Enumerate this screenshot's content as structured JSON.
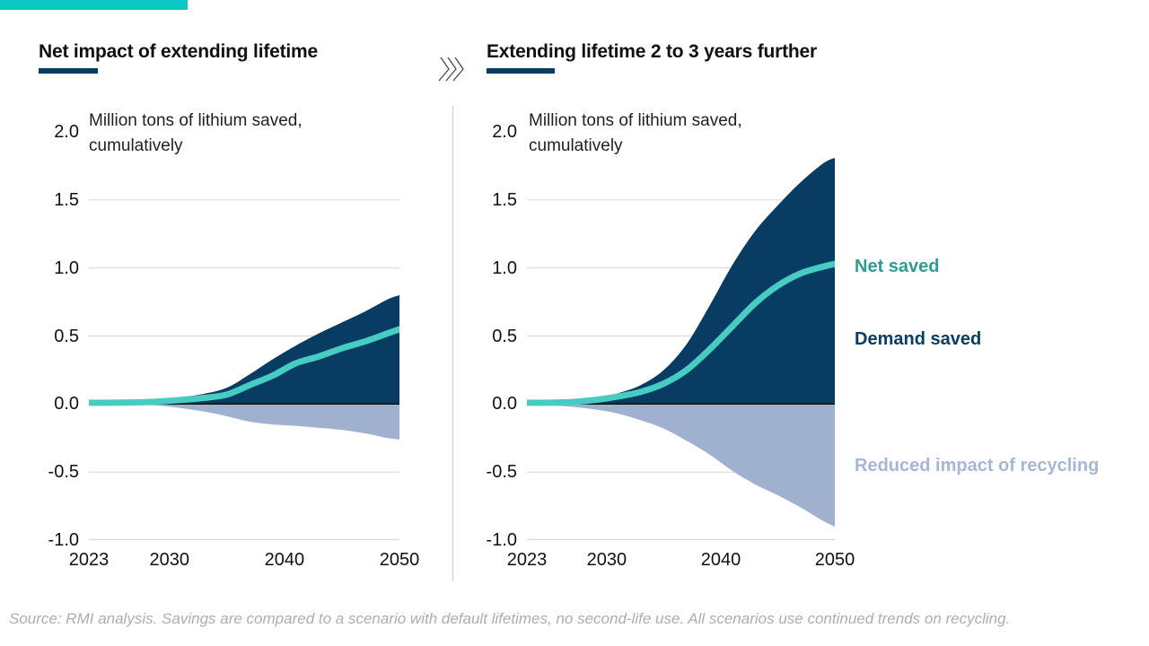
{
  "header": {
    "left_title": "Net impact of extending lifetime",
    "right_title": "Extending lifetime 2 to 3 years further",
    "chevrons_icon": "triple-right-chevron"
  },
  "legend": [
    {
      "label": "Net saved",
      "color": "#2E9C95"
    },
    {
      "label": "Demand saved",
      "color": "#0B3D61"
    },
    {
      "label": "Reduced impact of recycling",
      "color": "#A6B6D4"
    }
  ],
  "footer": {
    "source": "Source: RMI analysis. Savings are compared to a scenario with default lifetimes, no second-life use. All scenarios use continued trends on recycling."
  },
  "colors": {
    "brand_bar": "#0BC8C5",
    "underline": "#083C62",
    "divider": "#C9C9C9",
    "grid": "#DADADA",
    "zero_axis": "#111111",
    "footer_text": "#ADADAD",
    "text": "#1A1A1A"
  },
  "chart_data": [
    {
      "type": "area",
      "title": "Net impact of extending lifetime",
      "ylabel": "Million tons of lithium saved, cumulatively",
      "xlim": [
        2023,
        2050
      ],
      "ylim": [
        -1.0,
        2.0
      ],
      "gridlines": [
        1.5,
        1.0,
        0.5,
        -0.5,
        -1.0
      ],
      "ytick_labels": [
        "2.0",
        "1.5",
        "1.0",
        "0.5",
        "0.0",
        "-0.5",
        "-1.0"
      ],
      "xtick_labels": [
        "2023",
        "2030",
        "2040",
        "2050"
      ],
      "x": [
        2023,
        2025,
        2027,
        2029,
        2031,
        2033,
        2035,
        2037,
        2039,
        2041,
        2043,
        2045,
        2047,
        2049,
        2050
      ],
      "series": [
        {
          "name": "Demand saved",
          "render": "area-up",
          "color": "#083C62",
          "values": [
            0.01,
            0.012,
            0.015,
            0.025,
            0.05,
            0.075,
            0.12,
            0.22,
            0.33,
            0.43,
            0.52,
            0.6,
            0.68,
            0.77,
            0.8
          ]
        },
        {
          "name": "Reduced impact of recycling",
          "render": "area-down",
          "color": "#9FB1CF",
          "values": [
            0,
            -0.003,
            -0.006,
            -0.012,
            -0.03,
            -0.055,
            -0.09,
            -0.13,
            -0.15,
            -0.16,
            -0.175,
            -0.19,
            -0.215,
            -0.25,
            -0.26
          ]
        },
        {
          "name": "Net saved",
          "render": "line",
          "color": "#46CCC3",
          "values": [
            0.01,
            0.01,
            0.012,
            0.018,
            0.03,
            0.045,
            0.07,
            0.14,
            0.21,
            0.3,
            0.35,
            0.41,
            0.46,
            0.52,
            0.55
          ]
        }
      ]
    },
    {
      "type": "area",
      "title": "Extending lifetime 2 to 3 years further",
      "ylabel": "Million tons of lithium saved, cumulatively",
      "xlim": [
        2023,
        2050
      ],
      "ylim": [
        -1.0,
        2.0
      ],
      "gridlines": [
        1.5,
        1.0,
        0.5,
        -0.5,
        -1.0
      ],
      "ytick_labels": [
        "2.0",
        "1.5",
        "1.0",
        "0.5",
        "0.0",
        "-0.5",
        "-1.0"
      ],
      "xtick_labels": [
        "2023",
        "2030",
        "2040",
        "2050"
      ],
      "x": [
        2023,
        2025,
        2027,
        2029,
        2031,
        2033,
        2035,
        2037,
        2039,
        2041,
        2043,
        2045,
        2047,
        2049,
        2050
      ],
      "series": [
        {
          "name": "Demand saved",
          "render": "area-up",
          "color": "#083C62",
          "values": [
            0.01,
            0.012,
            0.02,
            0.04,
            0.08,
            0.14,
            0.25,
            0.44,
            0.72,
            1.02,
            1.27,
            1.46,
            1.63,
            1.77,
            1.81
          ]
        },
        {
          "name": "Reduced impact of recycling",
          "render": "area-down",
          "color": "#9FB1CF",
          "values": [
            0,
            -0.01,
            -0.02,
            -0.04,
            -0.07,
            -0.12,
            -0.18,
            -0.27,
            -0.37,
            -0.49,
            -0.59,
            -0.67,
            -0.76,
            -0.86,
            -0.9
          ]
        },
        {
          "name": "Net saved",
          "render": "line",
          "color": "#46CCC3",
          "values": [
            0.01,
            0.01,
            0.015,
            0.03,
            0.055,
            0.09,
            0.15,
            0.25,
            0.4,
            0.57,
            0.74,
            0.87,
            0.96,
            1.01,
            1.03
          ]
        }
      ]
    }
  ]
}
